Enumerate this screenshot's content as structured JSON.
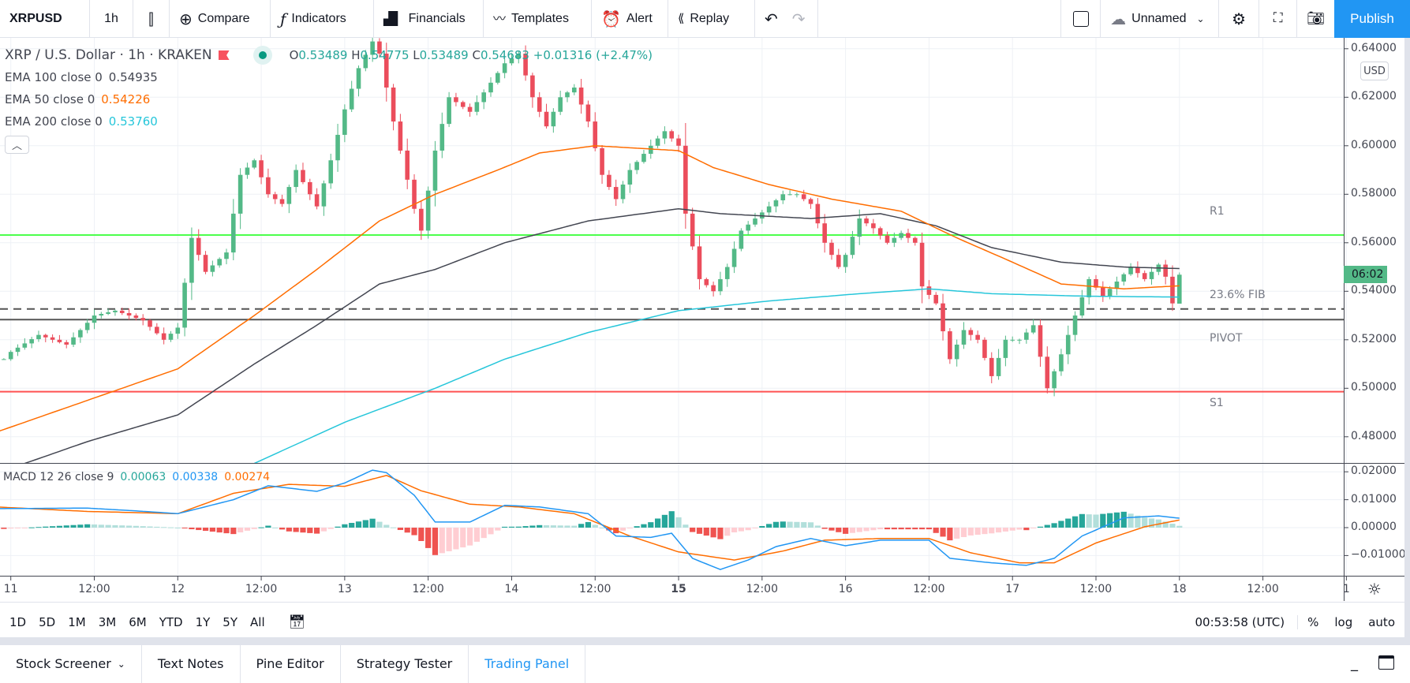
{
  "toolbar": {
    "symbol": "XRPUSD",
    "interval": "1h",
    "compare": "Compare",
    "indicators": "Indicators",
    "financials": "Financials",
    "templates": "Templates",
    "alert": "Alert",
    "replay": "Replay",
    "layout_name": "Unnamed",
    "publish": "Publish"
  },
  "legend": {
    "title": "XRP / U.S. Dollar · 1h · KRAKEN",
    "o_label": "O",
    "o": "0.53489",
    "h_label": "H",
    "h": "0.54775",
    "l_label": "L",
    "l": "0.53489",
    "c_label": "C",
    "c": "0.54683",
    "change": "+0.01316 (+2.47%)",
    "ema100": {
      "label": "EMA 100 close 0",
      "value": "0.54935",
      "color": "#434651"
    },
    "ema50": {
      "label": "EMA 50 close 0",
      "value": "0.54226",
      "color": "#ff6d00"
    },
    "ema200": {
      "label": "EMA 200 close 0",
      "value": "0.53760",
      "color": "#26c6da"
    },
    "collapse_icon": "chevron-up"
  },
  "macd_legend": {
    "label": "MACD 12 26 close 9",
    "hist": "0.00063",
    "macd": "0.00338",
    "signal": "0.00274"
  },
  "price_axis": {
    "currency": "USD",
    "ticks": [
      "0.64000",
      "0.62000",
      "0.60000",
      "0.58000",
      "0.56000",
      "0.54000",
      "0.52000",
      "0.50000",
      "0.48000"
    ],
    "countdown": "06:02"
  },
  "macd_axis": {
    "ticks": [
      "0.02000",
      "0.01000",
      "0.00000",
      "−0.01000"
    ]
  },
  "time_axis": {
    "ticks": [
      "11",
      "12:00",
      "12",
      "12:00",
      "13",
      "12:00",
      "14",
      "12:00",
      "15",
      "12:00",
      "16",
      "12:00",
      "17",
      "12:00",
      "18",
      "12:00",
      "1"
    ]
  },
  "levels": [
    {
      "label": "R1",
      "price": 0.5632,
      "color": "#4cff4c",
      "style": "solid"
    },
    {
      "label": "23.6% FIB",
      "price": 0.5327,
      "color": "#555555",
      "style": "dashed"
    },
    {
      "label": "PIVOT",
      "price": 0.5283,
      "color": "#555555",
      "style": "solid"
    },
    {
      "label": "S1",
      "price": 0.4986,
      "color": "#ff5252",
      "style": "solid"
    }
  ],
  "chart_data": {
    "type": "candlestick",
    "ylim": [
      0.47,
      0.645
    ],
    "last_candle": {
      "o": 0.53489,
      "h": 0.54775,
      "l": 0.53489,
      "c": 0.54683
    },
    "colors": {
      "up": "#53b987",
      "down": "#eb4d5c"
    },
    "close_path": [
      [
        "10 23:00",
        0.512
      ],
      [
        "11 00:00",
        0.515
      ],
      [
        "11 04:00",
        0.522
      ],
      [
        "11 08:00",
        0.518
      ],
      [
        "11 12:00",
        0.53
      ],
      [
        "11 15:00",
        0.532
      ],
      [
        "11 19:00",
        0.528
      ],
      [
        "11 22:00",
        0.52
      ],
      [
        "12 00:00",
        0.525
      ],
      [
        "12 02:00",
        0.562
      ],
      [
        "12 04:00",
        0.548
      ],
      [
        "12 07:00",
        0.556
      ],
      [
        "12 09:00",
        0.588
      ],
      [
        "12 11:00",
        0.594
      ],
      [
        "12 13:00",
        0.58
      ],
      [
        "12 15:00",
        0.576
      ],
      [
        "12 17:00",
        0.59
      ],
      [
        "12 20:00",
        0.575
      ],
      [
        "12 22:00",
        0.594
      ],
      [
        "13 00:00",
        0.615
      ],
      [
        "13 02:00",
        0.632
      ],
      [
        "13 04:00",
        0.643
      ],
      [
        "13 05:00",
        0.638
      ],
      [
        "13 07:00",
        0.61
      ],
      [
        "13 10:00",
        0.574
      ],
      [
        "13 11:00",
        0.565
      ],
      [
        "13 13:00",
        0.598
      ],
      [
        "13 15:00",
        0.62
      ],
      [
        "13 18:00",
        0.614
      ],
      [
        "13 21:00",
        0.626
      ],
      [
        "13 23:00",
        0.634
      ],
      [
        "14 01:00",
        0.638
      ],
      [
        "14 03:00",
        0.62
      ],
      [
        "14 05:00",
        0.608
      ],
      [
        "14 07:00",
        0.62
      ],
      [
        "14 09:00",
        0.624
      ],
      [
        "14 11:00",
        0.61
      ],
      [
        "14 13:00",
        0.588
      ],
      [
        "14 15:00",
        0.578
      ],
      [
        "14 17:00",
        0.59
      ],
      [
        "14 20:00",
        0.6
      ],
      [
        "14 22:00",
        0.606
      ],
      [
        "15 00:00",
        0.6
      ],
      [
        "15 01:00",
        0.572
      ],
      [
        "15 03:00",
        0.545
      ],
      [
        "15 05:00",
        0.54
      ],
      [
        "15 07:00",
        0.55
      ],
      [
        "15 09:00",
        0.565
      ],
      [
        "15 11:00",
        0.57
      ],
      [
        "15 13:00",
        0.575
      ],
      [
        "15 15:00",
        0.58
      ],
      [
        "15 17:00",
        0.58
      ],
      [
        "15 19:00",
        0.576
      ],
      [
        "15 21:00",
        0.56
      ],
      [
        "15 23:00",
        0.55
      ],
      [
        "16 00:00",
        0.555
      ],
      [
        "16 02:00",
        0.57
      ],
      [
        "16 04:00",
        0.566
      ],
      [
        "16 06:00",
        0.56
      ],
      [
        "16 08:00",
        0.564
      ],
      [
        "16 10:00",
        0.56
      ],
      [
        "16 11:00",
        0.542
      ],
      [
        "16 13:00",
        0.535
      ],
      [
        "16 15:00",
        0.512
      ],
      [
        "16 17:00",
        0.524
      ],
      [
        "16 19:00",
        0.52
      ],
      [
        "16 21:00",
        0.505
      ],
      [
        "16 23:00",
        0.52
      ],
      [
        "17 01:00",
        0.52
      ],
      [
        "17 03:00",
        0.526
      ],
      [
        "17 05:00",
        0.5
      ],
      [
        "17 07:00",
        0.514
      ],
      [
        "17 09:00",
        0.53
      ],
      [
        "17 11:00",
        0.545
      ],
      [
        "17 13:00",
        0.538
      ],
      [
        "17 15:00",
        0.544
      ],
      [
        "17 17:00",
        0.55
      ],
      [
        "17 19:00",
        0.545
      ],
      [
        "17 21:00",
        0.551
      ],
      [
        "17 22:00",
        0.546
      ],
      [
        "17 23:00",
        0.535
      ],
      [
        "18 00:00",
        0.54683
      ]
    ],
    "ema50": [
      [
        "10 22:00",
        0.482
      ],
      [
        "11 11:00",
        0.495
      ],
      [
        "12 00:00",
        0.508
      ],
      [
        "12 11:00",
        0.53
      ],
      [
        "12 20:00",
        0.549
      ],
      [
        "13 05:00",
        0.569
      ],
      [
        "13 13:00",
        0.58
      ],
      [
        "13 22:00",
        0.59
      ],
      [
        "14 04:00",
        0.597
      ],
      [
        "14 12:00",
        0.6
      ],
      [
        "15 00:00",
        0.598
      ],
      [
        "15 05:00",
        0.591
      ],
      [
        "15 13:00",
        0.584
      ],
      [
        "15 22:00",
        0.578
      ],
      [
        "16 08:00",
        0.573
      ],
      [
        "16 16:00",
        0.562
      ],
      [
        "17 00:00",
        0.552
      ],
      [
        "17 07:00",
        0.543
      ],
      [
        "17 16:00",
        0.541
      ],
      [
        "18 00:00",
        0.54226
      ]
    ],
    "ema100": [
      [
        "11 02:00",
        0.469
      ],
      [
        "11 11:00",
        0.478
      ],
      [
        "12 00:00",
        0.489
      ],
      [
        "12 11:00",
        0.51
      ],
      [
        "12 20:00",
        0.526
      ],
      [
        "13 05:00",
        0.543
      ],
      [
        "13 13:00",
        0.549
      ],
      [
        "13 23:00",
        0.56
      ],
      [
        "14 11:00",
        0.569
      ],
      [
        "15 00:00",
        0.574
      ],
      [
        "15 06:00",
        0.572
      ],
      [
        "15 19:00",
        0.57
      ],
      [
        "16 05:00",
        0.572
      ],
      [
        "16 13:00",
        0.567
      ],
      [
        "16 21:00",
        0.558
      ],
      [
        "17 07:00",
        0.552
      ],
      [
        "17 16:00",
        0.55
      ],
      [
        "18 00:00",
        0.54935
      ]
    ],
    "ema200": [
      [
        "12 11:00",
        0.469
      ],
      [
        "13 00:00",
        0.486
      ],
      [
        "13 13:00",
        0.5
      ],
      [
        "13 23:00",
        0.512
      ],
      [
        "14 11:00",
        0.523
      ],
      [
        "15 00:00",
        0.532
      ],
      [
        "15 13:00",
        0.536
      ],
      [
        "16 02:00",
        0.539
      ],
      [
        "16 12:00",
        0.541
      ],
      [
        "16 21:00",
        0.539
      ],
      [
        "17 10:00",
        0.538
      ],
      [
        "18 00:00",
        0.5376
      ]
    ],
    "macd": {
      "ylim": [
        -0.017,
        0.023
      ],
      "colors": {
        "macd": "#2196f3",
        "signal": "#ff6d00",
        "hist_up_strong": "#26a69a",
        "hist_up_weak": "#b2dfdb",
        "hist_down_strong": "#ef5350",
        "hist_down_weak": "#ffcdd2"
      },
      "macd_line": [
        [
          "10 22:00",
          0.0068
        ],
        [
          "11 11:00",
          0.007
        ],
        [
          "11 18:00",
          0.006
        ],
        [
          "12 00:00",
          0.005
        ],
        [
          "12 08:00",
          0.01
        ],
        [
          "12 13:00",
          0.015
        ],
        [
          "12 20:00",
          0.013
        ],
        [
          "13 00:00",
          0.016
        ],
        [
          "13 04:00",
          0.0206
        ],
        [
          "13 06:00",
          0.0197
        ],
        [
          "13 10:00",
          0.0116
        ],
        [
          "13 13:00",
          0.002
        ],
        [
          "13 18:00",
          0.002
        ],
        [
          "13 23:00",
          0.008
        ],
        [
          "14 04:00",
          0.0074
        ],
        [
          "14 11:00",
          0.005
        ],
        [
          "14 15:00",
          -0.003
        ],
        [
          "14 20:00",
          -0.0035
        ],
        [
          "14 23:00",
          -0.002
        ],
        [
          "15 02:00",
          -0.011
        ],
        [
          "15 06:00",
          -0.015
        ],
        [
          "15 10:00",
          -0.0116
        ],
        [
          "15 14:00",
          -0.0068
        ],
        [
          "15 19:00",
          -0.0039
        ],
        [
          "16 00:00",
          -0.0065
        ],
        [
          "16 05:00",
          -0.0045
        ],
        [
          "16 12:00",
          -0.0045
        ],
        [
          "16 15:00",
          -0.011
        ],
        [
          "16 21:00",
          -0.0126
        ],
        [
          "17 02:00",
          -0.0135
        ],
        [
          "17 06:00",
          -0.011
        ],
        [
          "17 10:00",
          -0.003
        ],
        [
          "17 16:00",
          0.0035
        ],
        [
          "17 21:00",
          0.0042
        ],
        [
          "18 00:00",
          0.00338
        ]
      ],
      "signal_line": [
        [
          "10 22:00",
          0.0074
        ],
        [
          "11 11:00",
          0.0058
        ],
        [
          "12 00:00",
          0.005
        ],
        [
          "12 08:00",
          0.0123
        ],
        [
          "12 16:00",
          0.0155
        ],
        [
          "13 00:00",
          0.0148
        ],
        [
          "13 06:00",
          0.0187
        ],
        [
          "13 11:00",
          0.0132
        ],
        [
          "13 18:00",
          0.0084
        ],
        [
          "14 01:00",
          0.0074
        ],
        [
          "14 09:00",
          0.005
        ],
        [
          "14 17:00",
          -0.003
        ],
        [
          "15 00:00",
          -0.0087
        ],
        [
          "15 08:00",
          -0.0116
        ],
        [
          "15 15:00",
          -0.0084
        ],
        [
          "15 21:00",
          -0.0045
        ],
        [
          "16 05:00",
          -0.0039
        ],
        [
          "16 12:00",
          -0.0039
        ],
        [
          "16 18:00",
          -0.009
        ],
        [
          "17 01:00",
          -0.0126
        ],
        [
          "17 06:00",
          -0.0126
        ],
        [
          "17 12:00",
          -0.0055
        ],
        [
          "17 19:00",
          0.0003
        ],
        [
          "18 00:00",
          0.00274
        ]
      ]
    }
  },
  "range_bar": {
    "ranges": [
      "1D",
      "5D",
      "1M",
      "3M",
      "6M",
      "YTD",
      "1Y",
      "5Y",
      "All"
    ],
    "clock": "00:53:58 (UTC)",
    "percent": "%",
    "log": "log",
    "auto": "auto"
  },
  "bottom_tabs": {
    "items": [
      "Stock Screener",
      "Text Notes",
      "Pine Editor",
      "Strategy Tester",
      "Trading Panel"
    ],
    "active": "Trading Panel"
  }
}
